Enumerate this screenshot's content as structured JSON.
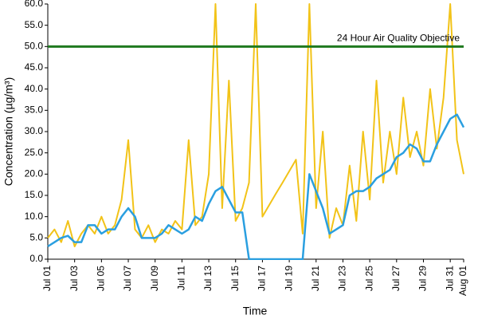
{
  "chart_data": {
    "type": "line",
    "xlabel": "Time",
    "ylabel": "Concentration (µg/m³)",
    "x": [
      0,
      0.5,
      1,
      1.5,
      2,
      2.5,
      3,
      3.5,
      4,
      4.5,
      5,
      5.5,
      6,
      6.5,
      7,
      7.5,
      8,
      8.5,
      9,
      9.5,
      10,
      10.5,
      11,
      11.5,
      12,
      12.5,
      13,
      13.5,
      14,
      14.5,
      15,
      15.5,
      16,
      16.5,
      17,
      17.5,
      18,
      18.5,
      19,
      19.5,
      20,
      20.5,
      21,
      21.5,
      22,
      22.5,
      23,
      23.5,
      24,
      24.5,
      25,
      25.5,
      26,
      26.5,
      27,
      27.5,
      28,
      28.5,
      29,
      29.5,
      30,
      30.5,
      31
    ],
    "series": [
      {
        "color": "#f2c318",
        "values": [
          5,
          7,
          4,
          9,
          3,
          6,
          8,
          6,
          10,
          6,
          8,
          14,
          28,
          7,
          5,
          8,
          4,
          7,
          6,
          9,
          7,
          28,
          8,
          10,
          20,
          60,
          12,
          42,
          9,
          12,
          18,
          60,
          10,
          12.7,
          15.4,
          18,
          20.7,
          23.4,
          6,
          60,
          12,
          30,
          5,
          12,
          8,
          22,
          9,
          30,
          14,
          42,
          18,
          30,
          20,
          38,
          24,
          30,
          22,
          40,
          26,
          38,
          60,
          28,
          20
        ]
      },
      {
        "color": "#2a9fe0",
        "values": [
          3,
          4,
          5,
          5.5,
          4,
          4,
          8,
          8,
          6,
          7,
          7,
          10,
          12,
          10,
          5,
          5,
          5,
          6,
          8,
          7,
          6,
          7,
          10,
          9,
          13,
          16,
          17,
          14,
          11,
          11,
          0,
          0,
          0,
          0,
          0,
          0,
          0,
          0,
          0,
          20,
          16,
          12,
          6,
          7,
          8,
          15,
          16,
          16,
          17,
          19,
          20,
          21,
          24,
          25,
          27,
          26,
          23,
          23,
          27,
          30,
          33,
          34,
          31
        ]
      }
    ],
    "threshold": {
      "value": 50,
      "label": "24 Hour Air Quality Objective",
      "color": "#1f7a1f"
    },
    "xlim": [
      0,
      31
    ],
    "xticks": [
      {
        "value": 0,
        "label": "Jul 01"
      },
      {
        "value": 2,
        "label": "Jul 03"
      },
      {
        "value": 4,
        "label": "Jul 05"
      },
      {
        "value": 6,
        "label": "Jul 07"
      },
      {
        "value": 8,
        "label": "Jul 09"
      },
      {
        "value": 10,
        "label": "Jul 11"
      },
      {
        "value": 12,
        "label": "Jul 13"
      },
      {
        "value": 14,
        "label": "Jul 15"
      },
      {
        "value": 16,
        "label": "Jul 17"
      },
      {
        "value": 18,
        "label": "Jul 19"
      },
      {
        "value": 20,
        "label": "Jul 21"
      },
      {
        "value": 22,
        "label": "Jul 23"
      },
      {
        "value": 24,
        "label": "Jul 25"
      },
      {
        "value": 26,
        "label": "Jul 27"
      },
      {
        "value": 28,
        "label": "Jul 29"
      },
      {
        "value": 30,
        "label": "Jul 31"
      },
      {
        "value": 31,
        "label": "Aug 01"
      }
    ],
    "ylim": [
      0,
      60
    ],
    "yticks": [
      {
        "value": 0,
        "label": "0.0"
      },
      {
        "value": 5,
        "label": "5.0"
      },
      {
        "value": 10,
        "label": "10.0"
      },
      {
        "value": 15,
        "label": "15.0"
      },
      {
        "value": 20,
        "label": "20.0"
      },
      {
        "value": 25,
        "label": "25.0"
      },
      {
        "value": 30,
        "label": "30.0"
      },
      {
        "value": 35,
        "label": "35.0"
      },
      {
        "value": 40,
        "label": "40.0"
      },
      {
        "value": 45,
        "label": "45.0"
      },
      {
        "value": 50,
        "label": "50.0"
      },
      {
        "value": 55,
        "label": "55.0"
      },
      {
        "value": 60,
        "label": "60.0"
      }
    ]
  }
}
